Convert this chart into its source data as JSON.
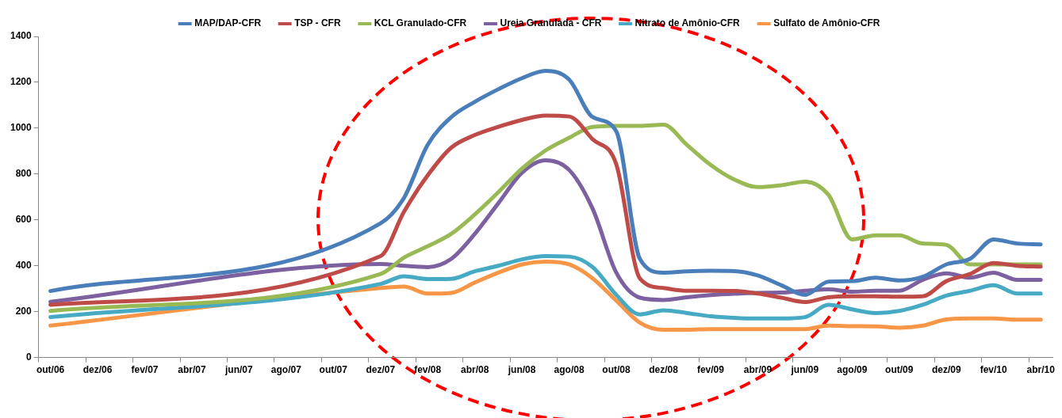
{
  "chart_data": {
    "type": "line",
    "categories": [
      "out/06",
      null,
      "dez/06",
      null,
      "fev/07",
      null,
      "abr/07",
      null,
      "jun/07",
      null,
      "ago/07",
      null,
      "out/07",
      null,
      "dez/07",
      null,
      "fev/08",
      null,
      "abr/08",
      null,
      "jun/08",
      null,
      "ago/08",
      null,
      "out/08",
      null,
      "dez/08",
      null,
      "fev/09",
      null,
      "abr/09",
      null,
      "jun/09",
      null,
      "ago/09",
      null,
      "out/09",
      null,
      "dez/09",
      null,
      "fev/10",
      null,
      "abr/10"
    ],
    "series": [
      {
        "name": "MAP/DAP-CFR",
        "color": "#4a7ebb",
        "values": [
          290,
          null,
          null,
          null,
          null,
          null,
          null,
          null,
          null,
          null,
          null,
          null,
          null,
          null,
          585,
          697,
          927,
          1048,
          1115,
          1170,
          1218,
          1250,
          1212,
          1048,
          986,
          430,
          370,
          376,
          378,
          377,
          358,
          315,
          273,
          331,
          333,
          348,
          336,
          352,
          406,
          430,
          515,
          497,
          493
        ]
      },
      {
        "name": "TSP - CFR",
        "color": "#be4b48",
        "values": [
          230,
          null,
          null,
          null,
          null,
          null,
          null,
          null,
          null,
          null,
          null,
          null,
          null,
          null,
          442,
          636,
          794,
          915,
          970,
          1006,
          1036,
          1055,
          1051,
          951,
          842,
          345,
          303,
          291,
          291,
          290,
          279,
          261,
          242,
          263,
          267,
          267,
          265,
          267,
          333,
          364,
          412,
          400,
          396
        ]
      },
      {
        "name": "KCL Granulado-CFR",
        "color": "#98b954",
        "values": [
          203,
          null,
          null,
          null,
          null,
          null,
          null,
          null,
          null,
          null,
          null,
          null,
          null,
          null,
          364,
          436,
          485,
          539,
          624,
          721,
          824,
          903,
          958,
          1006,
          1010,
          1010,
          1015,
          927,
          840,
          776,
          743,
          751,
          767,
          709,
          515,
          533,
          533,
          497,
          491,
          406,
          406,
          406,
          406
        ]
      },
      {
        "name": "Ureia Granulada - CFR",
        "color": "#7d60a0",
        "values": [
          243,
          null,
          null,
          null,
          null,
          null,
          null,
          null,
          null,
          null,
          null,
          null,
          null,
          null,
          408,
          400,
          394,
          430,
          539,
          673,
          806,
          860,
          818,
          648,
          370,
          261,
          251,
          263,
          272,
          278,
          282,
          283,
          291,
          297,
          287,
          291,
          291,
          339,
          367,
          348,
          370,
          339,
          339
        ]
      },
      {
        "name": "Nitrato de Amônio-CFR",
        "color": "#46aac5",
        "values": [
          176,
          null,
          null,
          null,
          null,
          null,
          null,
          null,
          null,
          null,
          null,
          null,
          null,
          null,
          321,
          354,
          342,
          343,
          376,
          400,
          428,
          442,
          440,
          394,
          273,
          188,
          206,
          194,
          180,
          173,
          170,
          170,
          176,
          230,
          210,
          194,
          203,
          230,
          270,
          291,
          315,
          279,
          279
        ]
      },
      {
        "name": "Sulfato de Amônio-CFR",
        "color": "#f79646",
        "values": [
          139,
          null,
          null,
          null,
          null,
          null,
          null,
          null,
          null,
          null,
          null,
          null,
          null,
          null,
          303,
          309,
          279,
          282,
          327,
          370,
          406,
          418,
          406,
          345,
          248,
          152,
          121,
          121,
          124,
          124,
          124,
          124,
          124,
          139,
          137,
          136,
          130,
          139,
          166,
          170,
          170,
          165,
          165
        ]
      }
    ],
    "ylim": [
      0,
      1400
    ],
    "yticks": [
      0,
      200,
      400,
      600,
      800,
      1000,
      1200,
      1400
    ],
    "legend": "top",
    "grid": false,
    "marker": "none",
    "line_style": "solid"
  }
}
